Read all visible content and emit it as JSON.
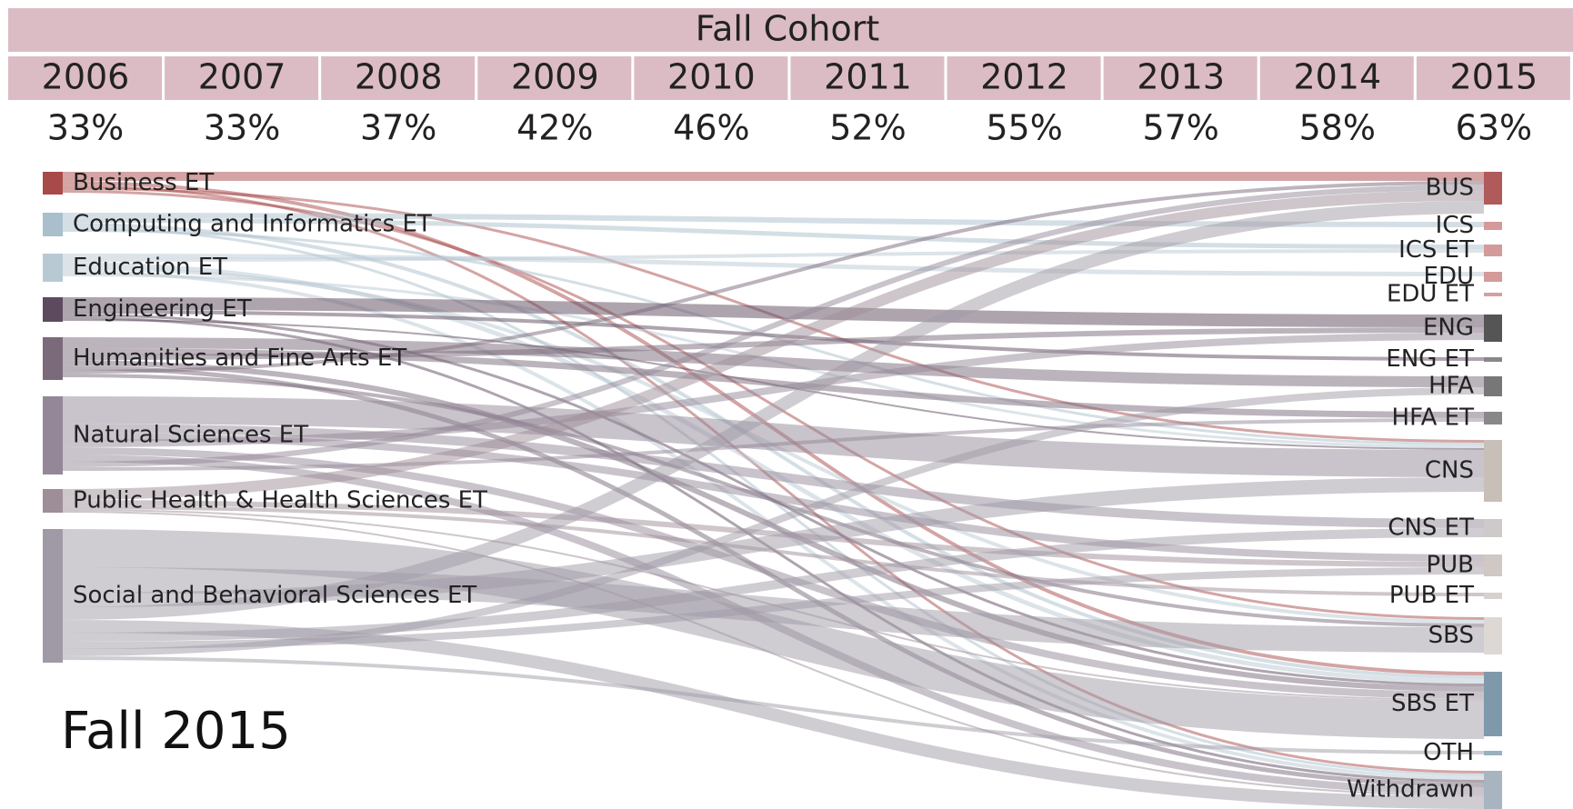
{
  "header": {
    "title": "Fall Cohort",
    "years": [
      "2006",
      "2007",
      "2008",
      "2009",
      "2010",
      "2011",
      "2012",
      "2013",
      "2014",
      "2015"
    ],
    "rates": [
      "33%",
      "33%",
      "37%",
      "42%",
      "46%",
      "52%",
      "55%",
      "57%",
      "58%",
      "63%"
    ]
  },
  "sankey": {
    "sources": [
      "Business ET",
      "Computing and Informatics ET",
      "Education ET",
      "Engineering ET",
      "Humanities and Fine Arts ET",
      "Natural Sciences ET",
      "Public Health & Health Sciences ET",
      "Social and Behavioral Sciences ET"
    ],
    "targets": [
      "BUS",
      "ICS",
      "ICS ET",
      "EDU",
      "EDU ET",
      "ENG",
      "ENG ET",
      "HFA",
      "HFA ET",
      "CNS",
      "CNS ET",
      "PUB",
      "PUB ET",
      "SBS",
      "SBS ET",
      "OTH",
      "Withdrawn"
    ]
  },
  "caption": "Fall 2015"
}
